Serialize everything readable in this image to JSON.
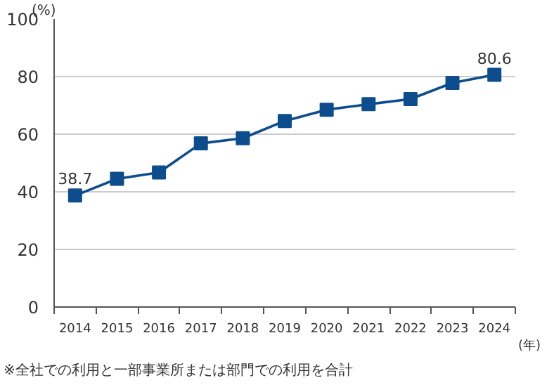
{
  "chart_data": {
    "type": "line",
    "ylabel": "(%)",
    "xlabel": "(年)",
    "categories": [
      "2014",
      "2015",
      "2016",
      "2017",
      "2018",
      "2019",
      "2020",
      "2021",
      "2022",
      "2023",
      "2024"
    ],
    "series": [
      {
        "color": "#0d4d8e",
        "values": [
          38.7,
          44.5,
          46.7,
          56.8,
          58.6,
          64.6,
          68.5,
          70.4,
          72.2,
          77.8,
          80.6
        ],
        "value_labels": [
          "38.7",
          null,
          null,
          null,
          null,
          null,
          null,
          null,
          null,
          null,
          "80.6"
        ]
      }
    ],
    "ylim": [
      0,
      100
    ],
    "yticks": [
      0,
      20,
      40,
      60,
      80,
      100
    ],
    "grid": "y",
    "marker": "square",
    "line_style": "solid",
    "annotations": [
      "※全社での利用と一部事業所または部門での利用を合計"
    ]
  }
}
